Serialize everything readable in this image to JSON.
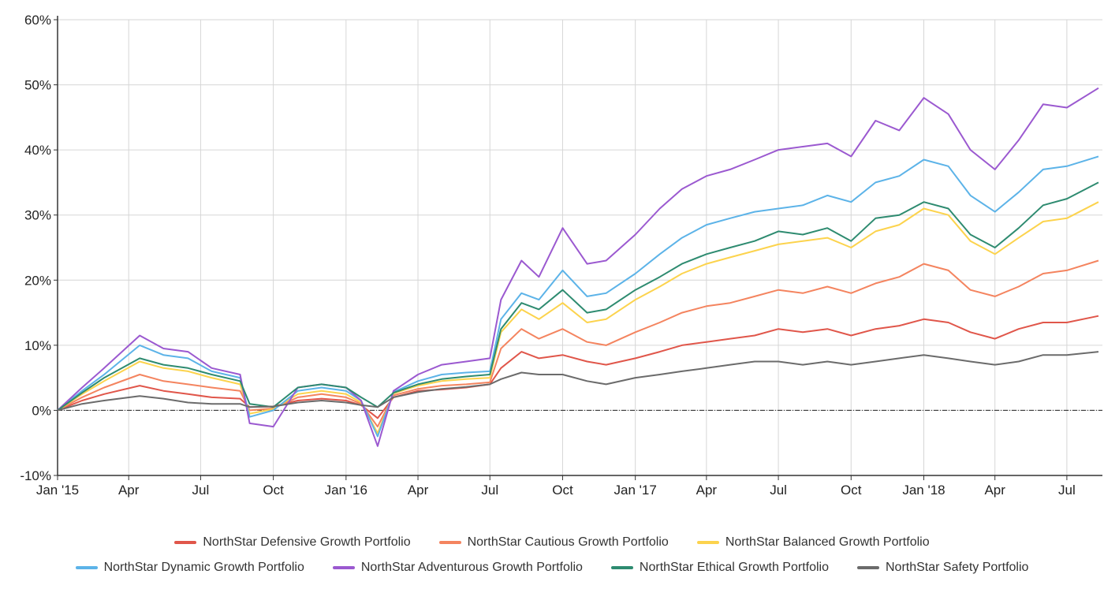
{
  "chart_data": {
    "type": "line",
    "title": "",
    "xlabel": "",
    "ylabel": "",
    "ylim": [
      -10,
      60
    ],
    "y_ticks": [
      -10,
      0,
      10,
      20,
      30,
      40,
      50,
      60
    ],
    "y_tick_labels": [
      "-10%",
      "0%",
      "10%",
      "20%",
      "30%",
      "40%",
      "50%",
      "60%"
    ],
    "x_range": [
      "2015-01-01",
      "2018-08-15"
    ],
    "x_ticks": [
      {
        "date": "2015-01-01",
        "label": "Jan '15"
      },
      {
        "date": "2015-04-01",
        "label": "Apr"
      },
      {
        "date": "2015-07-01",
        "label": "Jul"
      },
      {
        "date": "2015-10-01",
        "label": "Oct"
      },
      {
        "date": "2016-01-01",
        "label": "Jan '16"
      },
      {
        "date": "2016-04-01",
        "label": "Apr"
      },
      {
        "date": "2016-07-01",
        "label": "Jul"
      },
      {
        "date": "2016-10-01",
        "label": "Oct"
      },
      {
        "date": "2017-01-01",
        "label": "Jan '17"
      },
      {
        "date": "2017-04-01",
        "label": "Apr"
      },
      {
        "date": "2017-07-01",
        "label": "Jul"
      },
      {
        "date": "2017-10-01",
        "label": "Oct"
      },
      {
        "date": "2018-01-01",
        "label": "Jan '18"
      },
      {
        "date": "2018-04-01",
        "label": "Apr"
      },
      {
        "date": "2018-07-01",
        "label": "Jul"
      }
    ],
    "grid": true,
    "zero_line": "dash-dot",
    "legend_position": "bottom",
    "x": [
      "2015-01-01",
      "2015-02-01",
      "2015-03-01",
      "2015-04-15",
      "2015-05-15",
      "2015-06-15",
      "2015-07-15",
      "2015-08-20",
      "2015-09-01",
      "2015-10-01",
      "2015-11-01",
      "2015-12-01",
      "2016-01-01",
      "2016-01-20",
      "2016-02-10",
      "2016-03-01",
      "2016-04-01",
      "2016-05-01",
      "2016-06-01",
      "2016-07-01",
      "2016-07-15",
      "2016-08-10",
      "2016-09-01",
      "2016-10-01",
      "2016-11-01",
      "2016-11-25",
      "2017-01-01",
      "2017-02-01",
      "2017-03-01",
      "2017-04-01",
      "2017-05-01",
      "2017-06-01",
      "2017-07-01",
      "2017-08-01",
      "2017-09-01",
      "2017-10-01",
      "2017-11-01",
      "2017-12-01",
      "2018-01-01",
      "2018-02-01",
      "2018-03-01",
      "2018-04-01",
      "2018-05-01",
      "2018-06-01",
      "2018-07-01",
      "2018-08-10"
    ],
    "series": [
      {
        "name": "NorthStar Defensive Growth Portfolio",
        "color": "#e0564a",
        "values": [
          0,
          1.5,
          2.5,
          3.8,
          3.0,
          2.5,
          2.0,
          1.8,
          0.5,
          0.6,
          1.5,
          1.8,
          1.5,
          0.8,
          -1.2,
          2.0,
          3.0,
          3.2,
          3.5,
          4.0,
          6.5,
          9.0,
          8.0,
          8.5,
          7.5,
          7.0,
          8.0,
          9.0,
          10.0,
          10.5,
          11.0,
          11.5,
          12.5,
          12.0,
          12.5,
          11.5,
          12.5,
          13.0,
          14.0,
          13.5,
          12.0,
          11.0,
          12.5,
          13.5,
          13.5,
          14.5
        ]
      },
      {
        "name": "NorthStar Cautious Growth Portfolio",
        "color": "#f4845f",
        "values": [
          0,
          2.0,
          3.5,
          5.5,
          4.5,
          4.0,
          3.5,
          3.0,
          0.0,
          0.3,
          2.0,
          2.5,
          2.0,
          1.0,
          -2.5,
          2.3,
          3.3,
          3.8,
          4.0,
          4.3,
          9.5,
          12.5,
          11.0,
          12.5,
          10.5,
          10.0,
          12.0,
          13.5,
          15.0,
          16.0,
          16.5,
          17.5,
          18.5,
          18.0,
          19.0,
          18.0,
          19.5,
          20.5,
          22.5,
          21.5,
          18.5,
          17.5,
          19.0,
          21.0,
          21.5,
          23.0
        ]
      },
      {
        "name": "NorthStar Balanced Growth Portfolio",
        "color": "#fcd34d",
        "values": [
          0,
          2.5,
          4.5,
          7.5,
          6.5,
          6.0,
          5.0,
          4.0,
          -0.5,
          0.2,
          2.5,
          3.0,
          2.5,
          1.2,
          -3.5,
          2.6,
          3.8,
          4.5,
          4.8,
          5.0,
          12.0,
          15.5,
          14.0,
          16.5,
          13.5,
          14.0,
          17.0,
          19.0,
          21.0,
          22.5,
          23.5,
          24.5,
          25.5,
          26.0,
          26.5,
          25.0,
          27.5,
          28.5,
          31.0,
          30.0,
          26.0,
          24.0,
          26.5,
          29.0,
          29.5,
          32.0
        ]
      },
      {
        "name": "NorthStar Dynamic Growth Portfolio",
        "color": "#5cb3e8",
        "values": [
          0,
          3.0,
          5.5,
          10.0,
          8.5,
          8.0,
          6.0,
          5.0,
          -1.0,
          0.0,
          3.0,
          3.5,
          3.0,
          1.5,
          -4.0,
          2.8,
          4.5,
          5.5,
          5.8,
          6.0,
          14.0,
          18.0,
          17.0,
          21.5,
          17.5,
          18.0,
          21.0,
          24.0,
          26.5,
          28.5,
          29.5,
          30.5,
          31.0,
          31.5,
          33.0,
          32.0,
          35.0,
          36.0,
          38.5,
          37.5,
          33.0,
          30.5,
          33.5,
          37.0,
          37.5,
          39.0
        ]
      },
      {
        "name": "NorthStar Adventurous Growth Portfolio",
        "color": "#9b59d0",
        "values": [
          0,
          3.5,
          6.5,
          11.5,
          9.5,
          9.0,
          6.5,
          5.5,
          -2.0,
          -2.5,
          3.5,
          4.0,
          3.5,
          1.5,
          -5.5,
          3.0,
          5.5,
          7.0,
          7.5,
          8.0,
          17.0,
          23.0,
          20.5,
          28.0,
          22.5,
          23.0,
          27.0,
          31.0,
          34.0,
          36.0,
          37.0,
          38.5,
          40.0,
          40.5,
          41.0,
          39.0,
          44.5,
          43.0,
          48.0,
          45.5,
          40.0,
          37.0,
          41.5,
          47.0,
          46.5,
          49.5
        ]
      },
      {
        "name": "NorthStar Ethical Growth Portfolio",
        "color": "#2e8b70",
        "values": [
          0,
          2.7,
          5.0,
          8.0,
          7.0,
          6.5,
          5.5,
          4.5,
          1.0,
          0.5,
          3.5,
          4.0,
          3.5,
          2.0,
          0.5,
          2.7,
          4.0,
          4.8,
          5.2,
          5.5,
          12.5,
          16.5,
          15.5,
          18.5,
          15.0,
          15.5,
          18.5,
          20.5,
          22.5,
          24.0,
          25.0,
          26.0,
          27.5,
          27.0,
          28.0,
          26.0,
          29.5,
          30.0,
          32.0,
          31.0,
          27.0,
          25.0,
          28.0,
          31.5,
          32.5,
          35.0
        ]
      },
      {
        "name": "NorthStar Safety Portfolio",
        "color": "#6b6b6b",
        "values": [
          0,
          1.0,
          1.5,
          2.2,
          1.8,
          1.2,
          1.0,
          1.0,
          0.5,
          0.6,
          1.2,
          1.5,
          1.2,
          0.8,
          0.5,
          2.0,
          2.8,
          3.3,
          3.6,
          4.0,
          4.8,
          5.8,
          5.5,
          5.5,
          4.5,
          4.0,
          5.0,
          5.5,
          6.0,
          6.5,
          7.0,
          7.5,
          7.5,
          7.0,
          7.5,
          7.0,
          7.5,
          8.0,
          8.5,
          8.0,
          7.5,
          7.0,
          7.5,
          8.5,
          8.5,
          9.0
        ]
      }
    ]
  }
}
